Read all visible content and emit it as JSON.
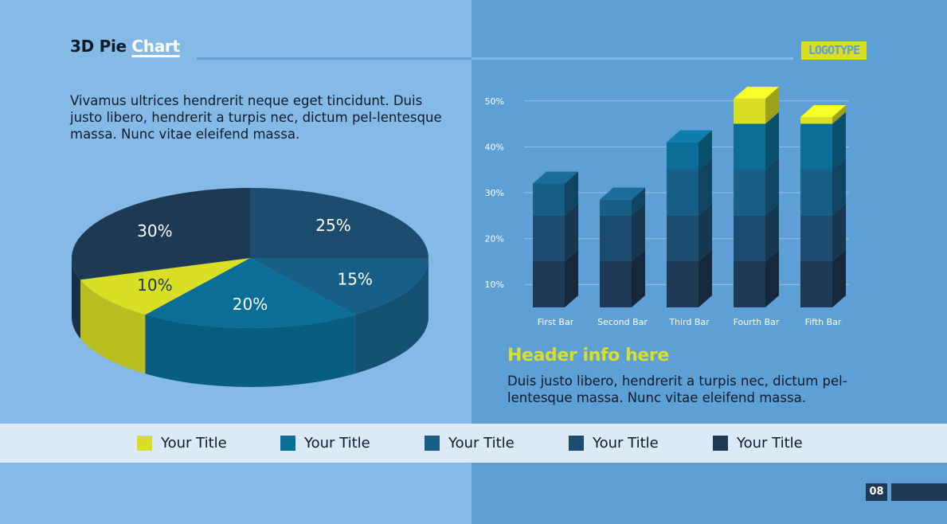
{
  "header": {
    "title_part1": "3D Pie ",
    "title_part2": "Chart",
    "logo": "LOGOTYPE"
  },
  "intro": {
    "text": "Vivamus ultrices hendrerit neque eget tincidunt. Duis justo libero, hendrerit a turpis nec, dictum pel-lentesque massa. Nunc vitae eleifend massa."
  },
  "info": {
    "header": "Header info here",
    "text": "Duis justo libero, hendrerit a turpis nec, dictum pel-lentesque massa. Nunc vitae eleifend massa."
  },
  "legend": [
    {
      "label": "Your Title",
      "color": "#d8df24"
    },
    {
      "label": "Your Title",
      "color": "#0b6e96"
    },
    {
      "label": "Your Title",
      "color": "#175f86"
    },
    {
      "label": "Your Title",
      "color": "#1d4d6e"
    },
    {
      "label": "Your Title",
      "color": "#1e3953"
    }
  ],
  "footer": {
    "page_number": "08"
  },
  "colors": {
    "left_bg": "#85b9e6",
    "right_bg": "#5e9fd6",
    "accent_yellow": "#d8df24",
    "dark_navy": "#1e3953"
  },
  "chart_data": [
    {
      "type": "pie",
      "style": "3d",
      "slices": [
        {
          "label": "25%",
          "value": 25,
          "color": "#1d4d6e"
        },
        {
          "label": "15%",
          "value": 15,
          "color": "#175f86"
        },
        {
          "label": "20%",
          "value": 20,
          "color": "#0b6e96"
        },
        {
          "label": "10%",
          "value": 10,
          "color": "#d8df24"
        },
        {
          "label": "30%",
          "value": 30,
          "color": "#1e3953"
        }
      ]
    },
    {
      "type": "bar",
      "style": "3d-stacked",
      "categories": [
        "First Bar",
        "Second Bar",
        "Third Bar",
        "Fourth Bar",
        "Fifth Bar"
      ],
      "yticks": [
        "10%",
        "20%",
        "30%",
        "40%",
        "50%"
      ],
      "ylim": [
        5,
        50
      ],
      "segment_colors": [
        "#1e3953",
        "#1d4d6e",
        "#175f86",
        "#0b6e96",
        "#d8df24"
      ],
      "segments": [
        [
          10,
          10,
          7,
          0,
          0
        ],
        [
          10,
          10,
          3.5,
          0,
          0
        ],
        [
          10,
          10,
          10,
          6,
          0
        ],
        [
          10,
          10,
          10,
          10,
          5.5
        ],
        [
          10,
          10,
          10,
          10,
          1.5
        ]
      ]
    }
  ]
}
